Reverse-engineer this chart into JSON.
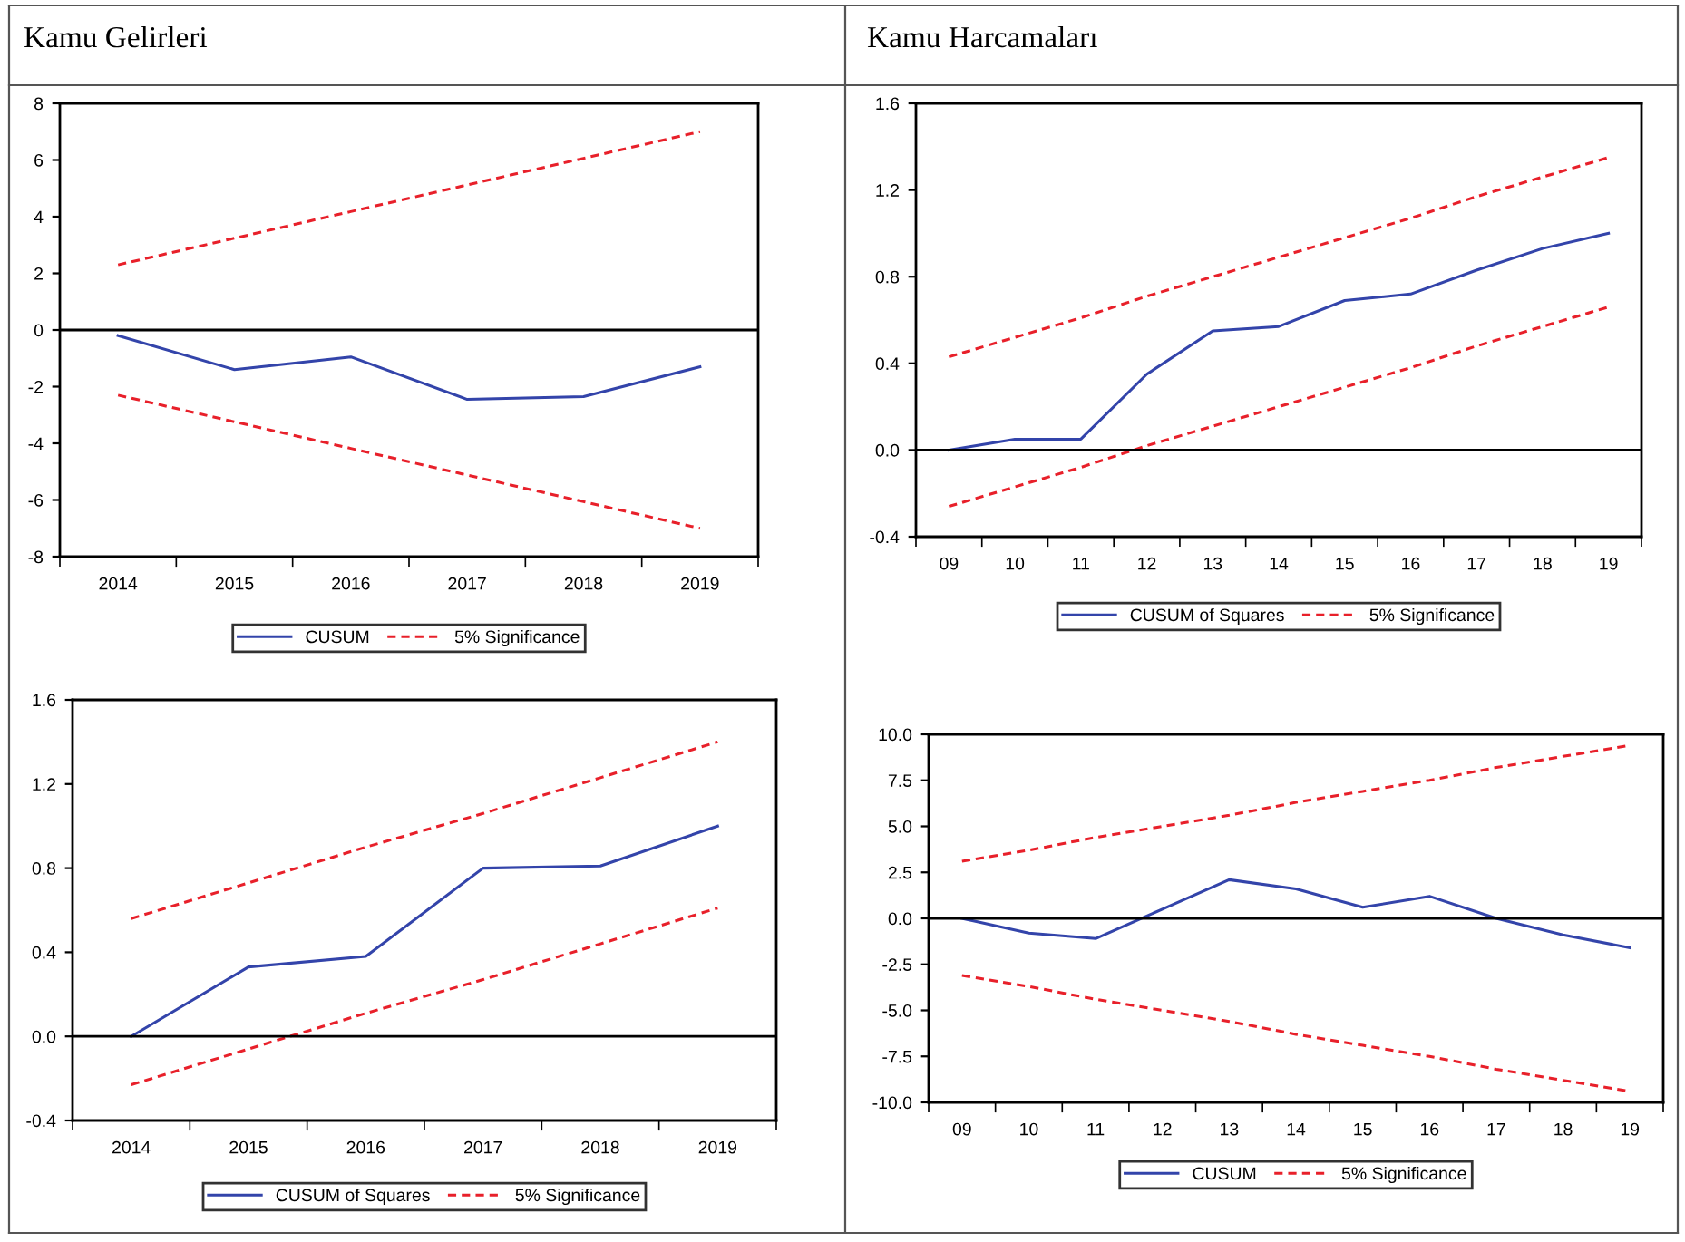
{
  "chart_data": [
    {
      "type": "line",
      "title": "Kamu Gelirleri",
      "categories": [
        "2014",
        "2015",
        "2016",
        "2017",
        "2018",
        "2019"
      ],
      "ylim": [
        -8,
        8
      ],
      "yticks": [
        -8,
        -6,
        -4,
        -2,
        0,
        2,
        4,
        6,
        8
      ],
      "grid": false,
      "legend": "bottom",
      "marker": "none",
      "ref_lines": [
        {
          "axis": "y",
          "value": 0,
          "color": "#000000",
          "line_style": "solid"
        }
      ],
      "series": [
        {
          "name": "CUSUM",
          "color": "#3344aa",
          "line_style": "solid",
          "values": [
            -0.2,
            -1.4,
            -0.95,
            -2.45,
            -2.35,
            -1.3
          ]
        },
        {
          "name": "5% Significance",
          "color": "#e8202a",
          "line_style": "dashed",
          "values": [
            2.3,
            3.24,
            4.18,
            5.12,
            6.06,
            7.0
          ]
        },
        {
          "color": "#e8202a",
          "line_style": "dashed",
          "values": [
            -2.3,
            -3.24,
            -4.18,
            -5.12,
            -6.06,
            -7.0
          ]
        }
      ]
    },
    {
      "type": "line",
      "title": "Kamu Harcamaları",
      "categories": [
        "09",
        "10",
        "11",
        "12",
        "13",
        "14",
        "15",
        "16",
        "17",
        "18",
        "19"
      ],
      "ylim": [
        -0.4,
        1.6
      ],
      "yticks": [
        -0.4,
        {
          "value": 0,
          "label": "0.0"
        },
        0.4,
        0.8,
        1.2,
        1.6
      ],
      "grid": false,
      "legend": "bottom",
      "marker": "none",
      "ref_lines": [
        {
          "axis": "y",
          "value": 0,
          "color": "#000000",
          "line_style": "solid"
        }
      ],
      "series": [
        {
          "name": "CUSUM of Squares",
          "color": "#3344aa",
          "line_style": "solid",
          "values": [
            0.0,
            0.05,
            0.05,
            0.35,
            0.55,
            0.57,
            0.69,
            0.72,
            0.83,
            0.93,
            1.0
          ]
        },
        {
          "name": "5% Significance",
          "color": "#e8202a",
          "line_style": "dashed",
          "values": [
            0.43,
            0.52,
            0.61,
            0.71,
            0.8,
            0.89,
            0.98,
            1.07,
            1.17,
            1.26,
            1.35
          ]
        },
        {
          "color": "#e8202a",
          "line_style": "dashed",
          "values": [
            -0.26,
            -0.17,
            -0.08,
            0.02,
            0.11,
            0.2,
            0.29,
            0.38,
            0.48,
            0.57,
            0.66
          ]
        }
      ]
    },
    {
      "type": "line",
      "categories": [
        "2014",
        "2015",
        "2016",
        "2017",
        "2018",
        "2019"
      ],
      "ylim": [
        -0.4,
        1.6
      ],
      "yticks": [
        -0.4,
        {
          "value": 0,
          "label": "0.0"
        },
        0.4,
        0.8,
        1.2,
        1.6
      ],
      "grid": false,
      "legend": "bottom",
      "marker": "none",
      "ref_lines": [
        {
          "axis": "y",
          "value": 0,
          "color": "#000000",
          "line_style": "solid"
        }
      ],
      "series": [
        {
          "name": "CUSUM of Squares",
          "color": "#3344aa",
          "line_style": "solid",
          "values": [
            0.0,
            0.33,
            0.38,
            0.8,
            0.81,
            1.0
          ]
        },
        {
          "name": "5% Significance",
          "color": "#e8202a",
          "line_style": "dashed",
          "values": [
            0.56,
            0.73,
            0.9,
            1.06,
            1.23,
            1.4
          ]
        },
        {
          "color": "#e8202a",
          "line_style": "dashed",
          "values": [
            -0.23,
            -0.06,
            0.11,
            0.27,
            0.44,
            0.61
          ]
        }
      ]
    },
    {
      "type": "line",
      "categories": [
        "09",
        "10",
        "11",
        "12",
        "13",
        "14",
        "15",
        "16",
        "17",
        "18",
        "19"
      ],
      "ylim": [
        -10,
        10
      ],
      "yticks": [
        {
          "value": -10,
          "label": "-10.0"
        },
        -7.5,
        {
          "value": -5,
          "label": "-5.0"
        },
        -2.5,
        {
          "value": 0,
          "label": "0.0"
        },
        2.5,
        {
          "value": 5,
          "label": "5.0"
        },
        7.5,
        {
          "value": 10,
          "label": "10.0"
        }
      ],
      "grid": false,
      "legend": "bottom",
      "marker": "none",
      "ref_lines": [
        {
          "axis": "y",
          "value": 0,
          "color": "#000000",
          "line_style": "solid"
        }
      ],
      "series": [
        {
          "name": "CUSUM",
          "color": "#3344aa",
          "line_style": "solid",
          "values": [
            0.0,
            -0.8,
            -1.1,
            0.5,
            2.1,
            1.6,
            0.6,
            1.2,
            0.0,
            -0.9,
            -1.6
          ]
        },
        {
          "name": "5% Significance",
          "color": "#e8202a",
          "line_style": "dashed",
          "values": [
            3.1,
            3.7,
            4.4,
            5.0,
            5.6,
            6.3,
            6.9,
            7.5,
            8.2,
            8.8,
            9.4
          ]
        },
        {
          "color": "#e8202a",
          "line_style": "dashed",
          "values": [
            -3.1,
            -3.7,
            -4.4,
            -5.0,
            -5.6,
            -6.3,
            -6.9,
            -7.5,
            -8.2,
            -8.8,
            -9.4
          ]
        }
      ]
    }
  ]
}
